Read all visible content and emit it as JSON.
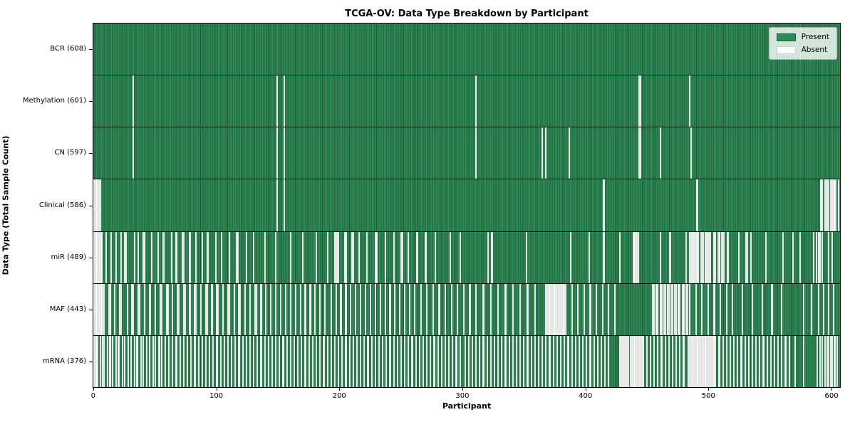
{
  "chart_data": {
    "type": "heatmap",
    "title": "TCGA-OV: Data Type Breakdown by Participant",
    "xlabel": "Participant",
    "ylabel": "Data Type (Total Sample Count)",
    "x_ticks": [
      0,
      100,
      200,
      300,
      400,
      500,
      600
    ],
    "n_participants": 608,
    "legend_labels": [
      "Present",
      "Absent"
    ],
    "colors": {
      "present": "#2E8B57",
      "present_edge": "#1E5C38",
      "absent": "#FFFFFF",
      "absent_edge": "#C4C4C4",
      "row_separator": "#1A1A1A"
    },
    "rows": [
      {
        "label": "BCR (608)",
        "present_count": 608,
        "absent_participants": []
      },
      {
        "label": "Methylation (601)",
        "present_count": 601,
        "absent_participants": [
          32,
          149,
          155,
          311,
          444,
          445,
          485
        ]
      },
      {
        "label": "CN (597)",
        "present_count": 597,
        "absent_participants": [
          32,
          149,
          155,
          311,
          365,
          368,
          387,
          444,
          445,
          461,
          486
        ]
      },
      {
        "label": "Clinical (586)",
        "present_count": 586,
        "absent_participants": [
          0,
          1,
          2,
          3,
          4,
          5,
          149,
          155,
          415,
          491,
          592,
          593,
          595,
          596,
          597,
          598,
          600,
          601,
          602,
          603,
          604,
          606
        ]
      },
      {
        "label": "miR (489)",
        "present_count": 489,
        "absent_participants": [
          0,
          1,
          2,
          3,
          4,
          5,
          6,
          10,
          14,
          18,
          22,
          25,
          26,
          33,
          36,
          40,
          41,
          47,
          52,
          56,
          57,
          63,
          67,
          72,
          73,
          78,
          83,
          88,
          92,
          93,
          99,
          104,
          110,
          116,
          117,
          124,
          130,
          139,
          148,
          160,
          170,
          181,
          190,
          196,
          197,
          198,
          199,
          204,
          205,
          210,
          211,
          216,
          222,
          229,
          230,
          237,
          244,
          250,
          251,
          256,
          263,
          270,
          278,
          290,
          298,
          321,
          324,
          352,
          388,
          403,
          415,
          428,
          439,
          440,
          441,
          442,
          443,
          461,
          469,
          482,
          485,
          486,
          487,
          488,
          489,
          490,
          491,
          492,
          494,
          495,
          496,
          498,
          499,
          500,
          501,
          502,
          505,
          506,
          508,
          509,
          511,
          512,
          513,
          516,
          525,
          531,
          532,
          535,
          547,
          561,
          569,
          575,
          586,
          588,
          590,
          591,
          593,
          598,
          601
        ]
      },
      {
        "label": "MAF (443)",
        "present_count": 443,
        "absent_participants": [
          0,
          1,
          2,
          3,
          4,
          5,
          6,
          7,
          8,
          12,
          13,
          17,
          21,
          22,
          27,
          31,
          32,
          36,
          37,
          41,
          45,
          46,
          50,
          54,
          55,
          59,
          60,
          64,
          68,
          69,
          73,
          74,
          78,
          82,
          83,
          87,
          91,
          92,
          96,
          100,
          101,
          105,
          109,
          110,
          114,
          118,
          119,
          123,
          127,
          131,
          132,
          136,
          140,
          144,
          148,
          152,
          156,
          160,
          164,
          168,
          172,
          176,
          180,
          184,
          188,
          193,
          197,
          201,
          205,
          209,
          213,
          217,
          221,
          225,
          229,
          233,
          237,
          241,
          245,
          249,
          253,
          257,
          261,
          266,
          271,
          276,
          281,
          286,
          291,
          296,
          301,
          306,
          311,
          317,
          323,
          329,
          335,
          341,
          347,
          353,
          359,
          368,
          369,
          370,
          371,
          372,
          373,
          374,
          375,
          376,
          377,
          378,
          379,
          380,
          381,
          382,
          383,
          384,
          389,
          394,
          399,
          404,
          409,
          414,
          419,
          424,
          455,
          456,
          458,
          459,
          461,
          462,
          464,
          465,
          467,
          468,
          470,
          471,
          473,
          474,
          476,
          477,
          479,
          480,
          482,
          483,
          485,
          490,
          495,
          500,
          505,
          510,
          515,
          520,
          528,
          536,
          544,
          552,
          560,
          578,
          584,
          590,
          594,
          598,
          602
        ]
      },
      {
        "label": "mRNA (376)",
        "present_count": 376,
        "absent_participants": [
          0,
          1,
          2,
          3,
          5,
          7,
          8,
          11,
          13,
          15,
          18,
          20,
          23,
          25,
          28,
          30,
          33,
          35,
          38,
          40,
          43,
          45,
          48,
          50,
          53,
          55,
          58,
          61,
          64,
          67,
          70,
          73,
          76,
          79,
          82,
          85,
          88,
          91,
          94,
          97,
          100,
          103,
          106,
          109,
          112,
          115,
          118,
          121,
          124,
          127,
          130,
          133,
          136,
          139,
          142,
          145,
          148,
          151,
          154,
          157,
          160,
          163,
          166,
          169,
          172,
          175,
          178,
          181,
          184,
          187,
          190,
          193,
          196,
          199,
          202,
          205,
          208,
          211,
          214,
          217,
          220,
          223,
          226,
          229,
          232,
          235,
          238,
          241,
          244,
          247,
          250,
          253,
          256,
          259,
          262,
          265,
          268,
          271,
          274,
          277,
          280,
          283,
          286,
          289,
          292,
          295,
          298,
          302,
          305,
          308,
          311,
          314,
          317,
          320,
          323,
          326,
          329,
          332,
          335,
          338,
          341,
          344,
          347,
          350,
          353,
          356,
          359,
          362,
          365,
          368,
          371,
          374,
          377,
          380,
          383,
          386,
          389,
          392,
          395,
          398,
          401,
          404,
          407,
          410,
          413,
          416,
          419,
          428,
          429,
          430,
          431,
          432,
          433,
          434,
          435,
          437,
          438,
          439,
          440,
          441,
          442,
          443,
          444,
          445,
          446,
          447,
          450,
          453,
          456,
          459,
          462,
          465,
          468,
          471,
          474,
          477,
          480,
          484,
          485,
          486,
          487,
          488,
          489,
          490,
          491,
          492,
          493,
          494,
          495,
          496,
          497,
          498,
          499,
          500,
          501,
          502,
          503,
          504,
          505,
          506,
          509,
          512,
          515,
          518,
          521,
          524,
          527,
          530,
          533,
          536,
          539,
          542,
          545,
          548,
          551,
          554,
          557,
          560,
          563,
          566,
          571,
          578,
          589,
          591,
          593,
          595,
          597,
          598,
          600,
          601,
          603,
          605
        ]
      }
    ]
  }
}
